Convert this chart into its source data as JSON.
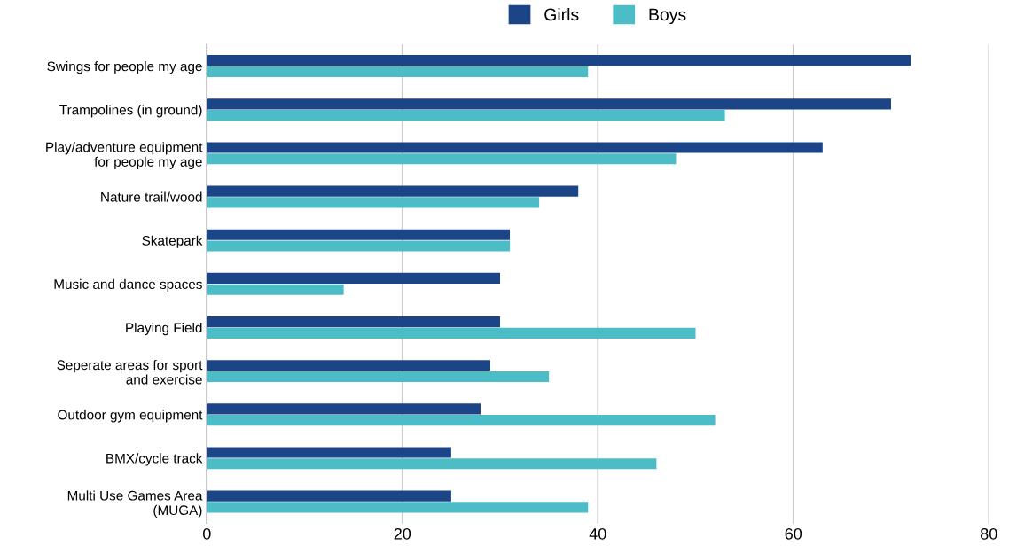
{
  "chart_data": {
    "type": "bar",
    "orientation": "horizontal",
    "categories": [
      "Swings for people my age",
      "Trampolines (in ground)",
      "Play/adventure equipment\nfor people my age",
      "Nature trail/wood",
      "Skatepark",
      "Music and dance spaces",
      "Playing Field",
      "Seperate areas for sport\nand exercise",
      "Outdoor gym equipment",
      "BMX/cycle track",
      "Multi Use Games Area\n(MUGA)"
    ],
    "series": [
      {
        "name": "Girls",
        "color": "#1c4587",
        "values": [
          72,
          70,
          63,
          38,
          31,
          30,
          30,
          29,
          28,
          25,
          25
        ]
      },
      {
        "name": "Boys",
        "color": "#4cbcc6",
        "values": [
          39,
          53,
          48,
          34,
          31,
          14,
          50,
          35,
          52,
          46,
          39
        ]
      }
    ],
    "xlim": [
      0,
      80
    ],
    "xticks": [
      0,
      20,
      40,
      60,
      80
    ],
    "grid": "x",
    "legend": "top"
  }
}
